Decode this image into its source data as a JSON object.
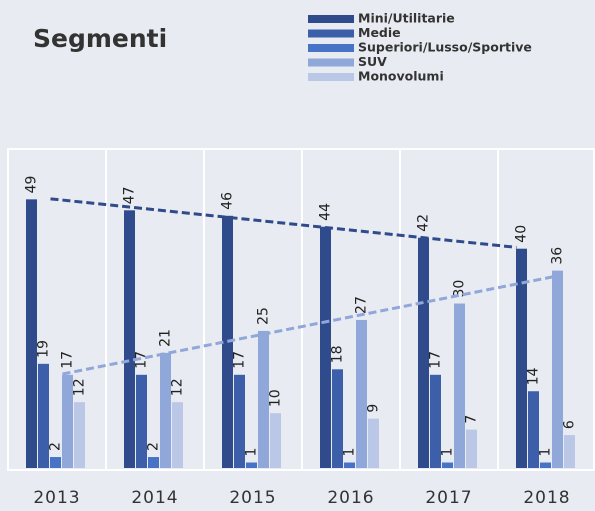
{
  "chart_data": {
    "type": "bar",
    "title": "Segmenti",
    "categories": [
      "2013",
      "2014",
      "2015",
      "2016",
      "2017",
      "2018"
    ],
    "series": [
      {
        "name": "Mini/Utilitarie",
        "color": "#2f4b8c",
        "values": [
          49,
          47,
          46,
          44,
          42,
          40
        ],
        "trendline": true
      },
      {
        "name": "Medie",
        "color": "#3d5fa9",
        "values": [
          19,
          17,
          17,
          18,
          17,
          14
        ]
      },
      {
        "name": "Superiori/Lusso/Sportive",
        "color": "#4673c6",
        "values": [
          2,
          2,
          1,
          1,
          1,
          1
        ]
      },
      {
        "name": "SUV",
        "color": "#90a7d9",
        "values": [
          17,
          21,
          25,
          27,
          30,
          36
        ],
        "trendline": true
      },
      {
        "name": "Monovolumi",
        "color": "#bac7e6",
        "values": [
          12,
          12,
          10,
          9,
          7,
          6
        ]
      }
    ],
    "ylim": [
      0,
      58
    ]
  }
}
